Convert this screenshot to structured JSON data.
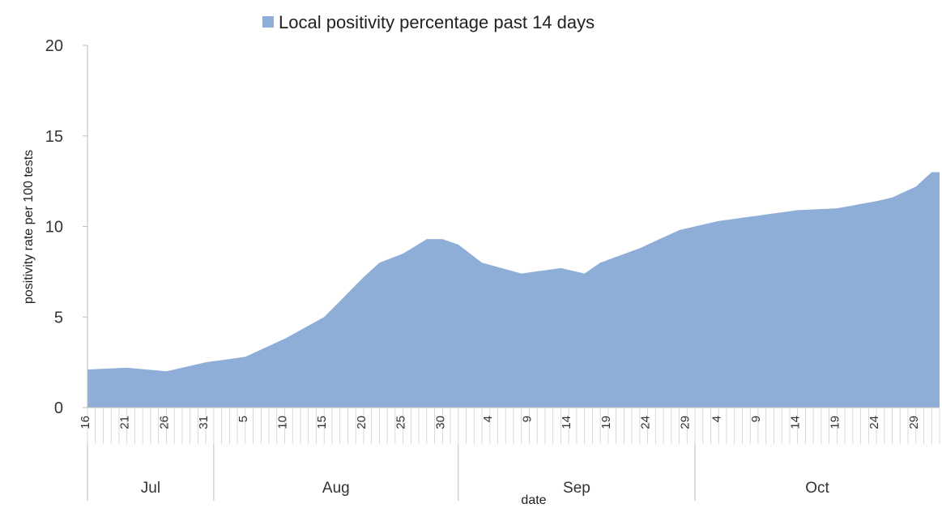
{
  "chart_data": {
    "type": "area",
    "legend": {
      "label": "Local positivity percentage past 14 days",
      "position": "top"
    },
    "xlabel": "date",
    "ylabel": "positivity rate per 100 tests",
    "ylim": [
      0,
      20
    ],
    "yticks": [
      "0",
      "5",
      "10",
      "15",
      "20"
    ],
    "series_color": "#8eaed8",
    "x": [
      "Jul 16",
      "Jul 21",
      "Jul 26",
      "Jul 31",
      "Aug 5",
      "Aug 10",
      "Aug 15",
      "Aug 20",
      "Aug 22",
      "Aug 25",
      "Aug 28",
      "Aug 30",
      "Sep 1",
      "Sep 4",
      "Sep 9",
      "Sep 14",
      "Sep 17",
      "Sep 19",
      "Sep 24",
      "Sep 29",
      "Oct 4",
      "Oct 9",
      "Oct 14",
      "Oct 19",
      "Oct 24",
      "Oct 26",
      "Oct 29",
      "Oct 31"
    ],
    "values": [
      2.1,
      2.2,
      2.0,
      2.5,
      2.8,
      3.8,
      5.0,
      7.2,
      8.0,
      8.5,
      9.3,
      9.3,
      9.0,
      8.0,
      7.4,
      7.7,
      7.4,
      8.0,
      8.8,
      9.8,
      10.3,
      10.6,
      10.9,
      11.0,
      11.4,
      11.6,
      12.2,
      13.0
    ],
    "tick_labels": [
      "16",
      "21",
      "26",
      "31",
      "5",
      "10",
      "15",
      "20",
      "25",
      "30",
      "4",
      "9",
      "14",
      "19",
      "24",
      "29",
      "4",
      "9",
      "14",
      "19",
      "24",
      "29"
    ],
    "months": [
      {
        "name": "Jul",
        "start_day": 0,
        "end_day": 16
      },
      {
        "name": "Aug",
        "start_day": 16,
        "end_day": 47
      },
      {
        "name": "Sep",
        "start_day": 47,
        "end_day": 77
      },
      {
        "name": "Oct",
        "start_day": 77,
        "end_day": 108
      }
    ]
  }
}
